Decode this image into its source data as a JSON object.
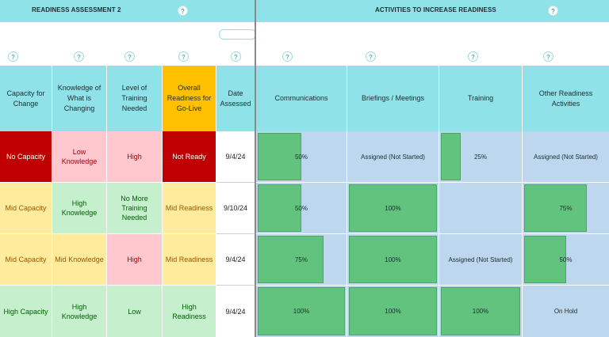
{
  "colors": {
    "header_teal": "#8fe3e8",
    "overall_header": "#ffc000",
    "red": "#c00000",
    "pink": "#ffc7ce",
    "yellow": "#ffeb9c",
    "green_bg": "#c6efce",
    "blue_bg": "#bdd7ee",
    "bar_green": "#62c37f"
  },
  "left_title": "READINESS ASSESSMENT 2",
  "right_title": "ACTIVITIES TO INCREASE READINESS",
  "help_icon": "?",
  "left_headers": [
    "Capacity for Change",
    "Knowledge of What is Changing",
    "Level of Training Needed",
    "Overall Readiness for Go-Live",
    "Date Assessed"
  ],
  "right_headers": [
    "Communications",
    "Briefings / Meetings",
    "Training",
    "Other Readiness Activities"
  ],
  "rows": [
    {
      "capacity": "No Capacity",
      "knowledge": "Low Knowledge",
      "training": "High",
      "overall": "Not Ready",
      "date": "9/4/24",
      "activities": [
        {
          "text": "50%",
          "progress": 0.5
        },
        {
          "text": "Assigned (Not Started)",
          "progress": 0
        },
        {
          "text": "25%",
          "progress": 0.25
        },
        {
          "text": "Assigned (Not Started)",
          "progress": 0
        }
      ]
    },
    {
      "capacity": "Mid Capacity",
      "knowledge": "High Knowledge",
      "training": "No More Training Needed",
      "overall": "Mid Readiness",
      "date": "9/10/24",
      "activities": [
        {
          "text": "50%",
          "progress": 0.5
        },
        {
          "text": "100%",
          "progress": 1
        },
        {
          "text": "",
          "progress": 0
        },
        {
          "text": "75%",
          "progress": 0.75
        }
      ]
    },
    {
      "capacity": "Mid Capacity",
      "knowledge": "Mid Knowledge",
      "training": "High",
      "overall": "Mid Readiness",
      "date": "9/4/24",
      "activities": [
        {
          "text": "75%",
          "progress": 0.75
        },
        {
          "text": "100%",
          "progress": 1
        },
        {
          "text": "Assigned (Not Started)",
          "progress": 0
        },
        {
          "text": "50%",
          "progress": 0.5
        }
      ]
    },
    {
      "capacity": "High Capacity",
      "knowledge": "High Knowledge",
      "training": "Low",
      "overall": "High Readiness",
      "date": "9/4/24",
      "activities": [
        {
          "text": "100%",
          "progress": 1
        },
        {
          "text": "100%",
          "progress": 1
        },
        {
          "text": "100%",
          "progress": 1
        },
        {
          "text": "On Hold",
          "progress": 0
        }
      ]
    }
  ]
}
